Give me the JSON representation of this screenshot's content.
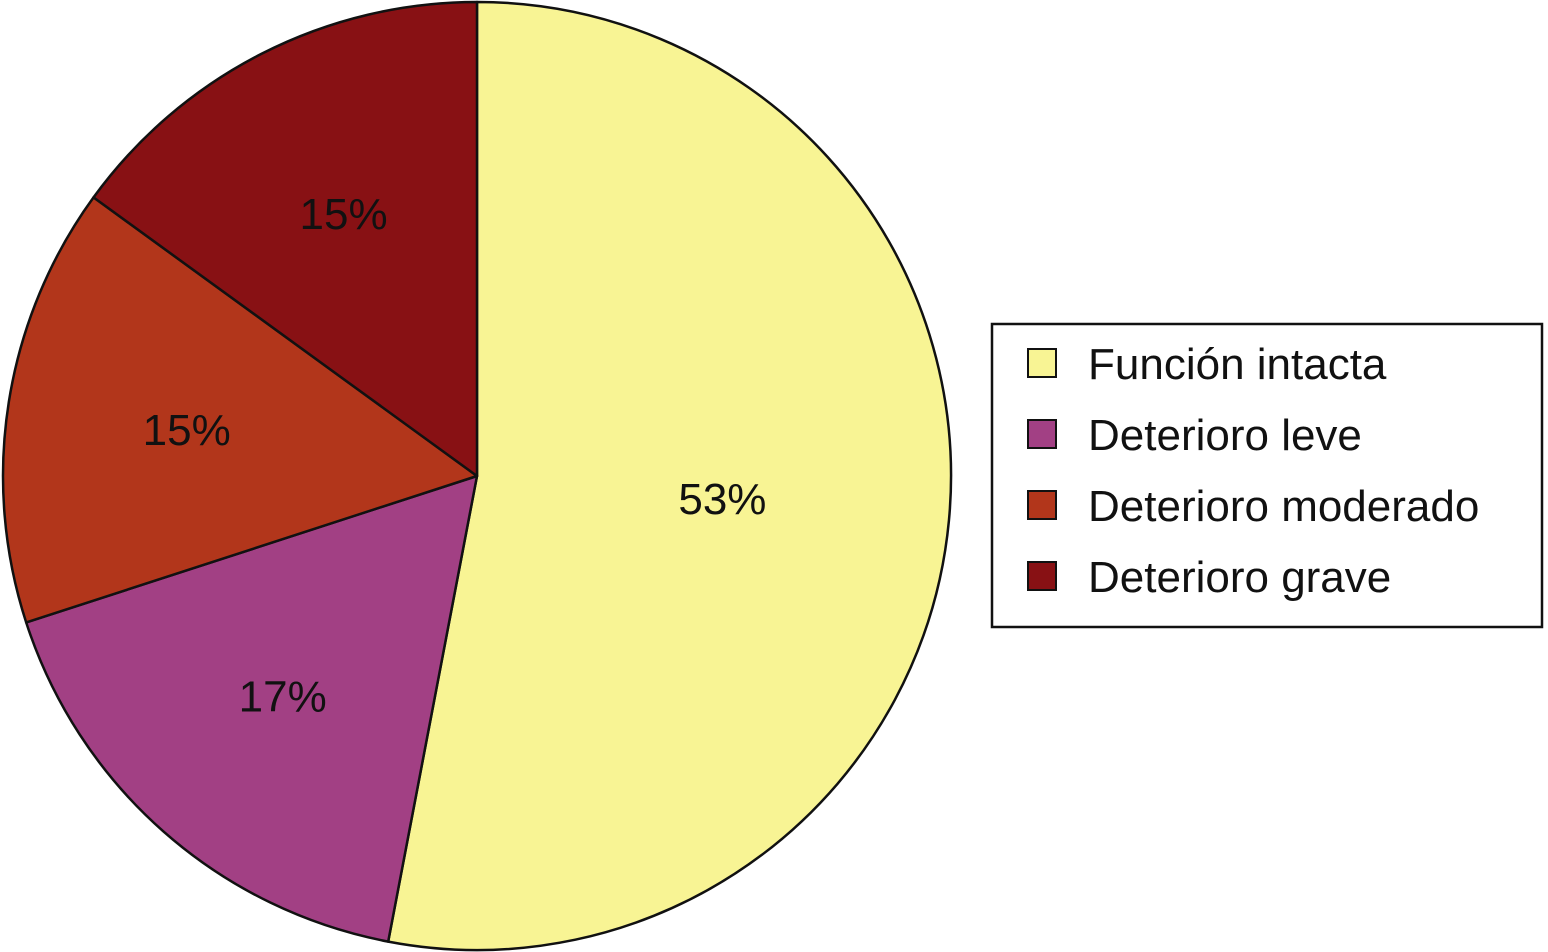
{
  "chart_data": {
    "type": "pie",
    "legend_position": "right",
    "start_angle_deg": 0,
    "direction": "clockwise",
    "slices": [
      {
        "name": "Función intacta",
        "value": 53,
        "label": "53%",
        "color": "#F8F494"
      },
      {
        "name": "Deterioro leve",
        "value": 17,
        "label": "17%",
        "color": "#A24084"
      },
      {
        "name": "Deterioro moderado",
        "value": 15,
        "label": "15%",
        "color": "#B2361B"
      },
      {
        "name": "Deterioro grave",
        "value": 15,
        "label": "15%",
        "color": "#881114"
      }
    ]
  }
}
